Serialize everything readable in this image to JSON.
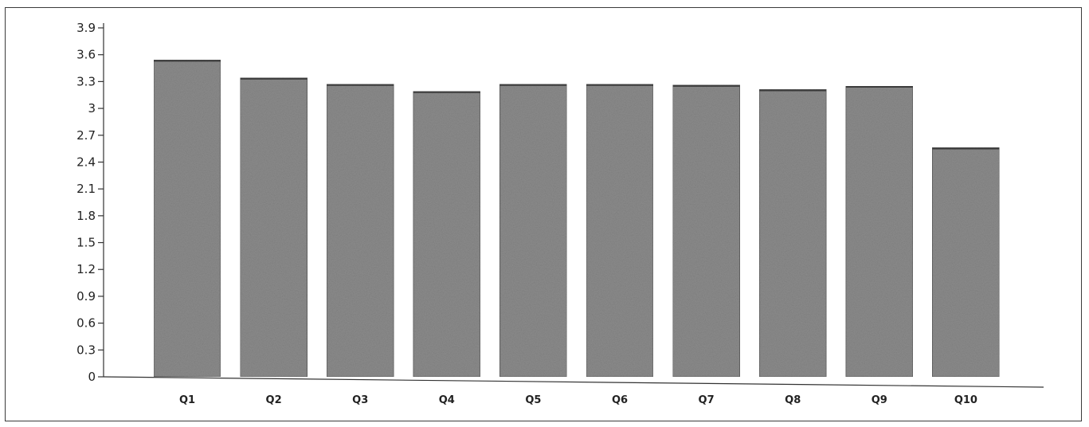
{
  "chart_data": {
    "type": "bar",
    "title": "",
    "xlabel": "",
    "ylabel": "",
    "categories": [
      "Q1",
      "Q2",
      "Q3",
      "Q4",
      "Q5",
      "Q6",
      "Q7",
      "Q8",
      "Q9",
      "Q10"
    ],
    "values": [
      3.54,
      3.34,
      3.27,
      3.19,
      3.27,
      3.27,
      3.26,
      3.21,
      3.25,
      2.56
    ],
    "ylim": [
      0,
      3.9
    ],
    "yticks": [
      "0",
      "0.3",
      "0.6",
      "0.9",
      "1.2",
      "1.5",
      "1.8",
      "2.1",
      "2.4",
      "2.7",
      "3",
      "3.3",
      "3.6",
      "3.9"
    ],
    "grid": false,
    "legend": "none",
    "colors": {
      "bar_fill": "#8c8c8c",
      "bar_edge": "#5f5f5f",
      "axis": "#333333"
    }
  }
}
